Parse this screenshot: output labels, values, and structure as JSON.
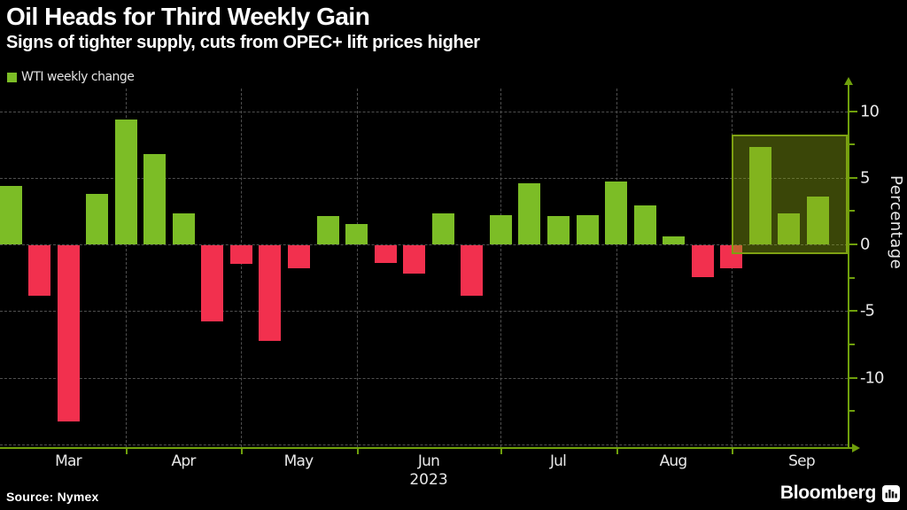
{
  "header": {
    "title": "Oil Heads for Third Weekly Gain",
    "subtitle": "Signs of tighter supply, cuts from OPEC+ lift prices higher"
  },
  "legend": {
    "label": "WTI weekly change",
    "swatch_color": "#7cbd26"
  },
  "chart_data": {
    "type": "bar",
    "title": "Oil Heads for Third Weekly Gain",
    "subtitle": "Signs of tighter supply, cuts from OPEC+ lift prices higher",
    "series": [
      {
        "name": "WTI weekly change",
        "values": [
          4.4,
          -3.8,
          -13.2,
          3.8,
          9.4,
          6.8,
          2.3,
          -5.7,
          -1.4,
          -7.2,
          -1.7,
          2.1,
          1.5,
          -1.3,
          -2.1,
          2.3,
          -3.8,
          2.2,
          4.6,
          2.1,
          2.2,
          4.7,
          2.9,
          0.6,
          -2.4,
          -1.7,
          7.3,
          2.3,
          3.6
        ]
      }
    ],
    "x_axis": {
      "month_labels": [
        "Mar",
        "Apr",
        "May",
        "Jun",
        "Jul",
        "Aug",
        "Sep"
      ],
      "year_label": "2023"
    },
    "y_axis": {
      "label": "Percentage",
      "major_ticks": [
        10,
        5,
        0,
        -5,
        -10
      ],
      "minor_ticks": [
        7.5,
        2.5,
        -2.5,
        -7.5,
        -12.5
      ],
      "gridline_values": [
        10,
        5,
        0,
        -5,
        -10,
        -15
      ],
      "range_top": 11.7,
      "range_bottom": -15.3
    },
    "highlight": {
      "description": "recent-weeks-gain-highlight-box",
      "value_top": 8.24,
      "value_bottom": -0.73,
      "starts_at_month_boundary": "Sep"
    },
    "colors": {
      "positive_bar": "#7cbd26",
      "negative_bar": "#f2304e",
      "axis": "#6fa00c",
      "grid": "#4f4f4f",
      "highlight_fill": "rgba(138,167,19,0.42)",
      "highlight_border": "#7ea012"
    },
    "legend_position": "top-left",
    "grid": true
  },
  "footer": {
    "source": "Source: Nymex",
    "brand": "Bloomberg"
  }
}
